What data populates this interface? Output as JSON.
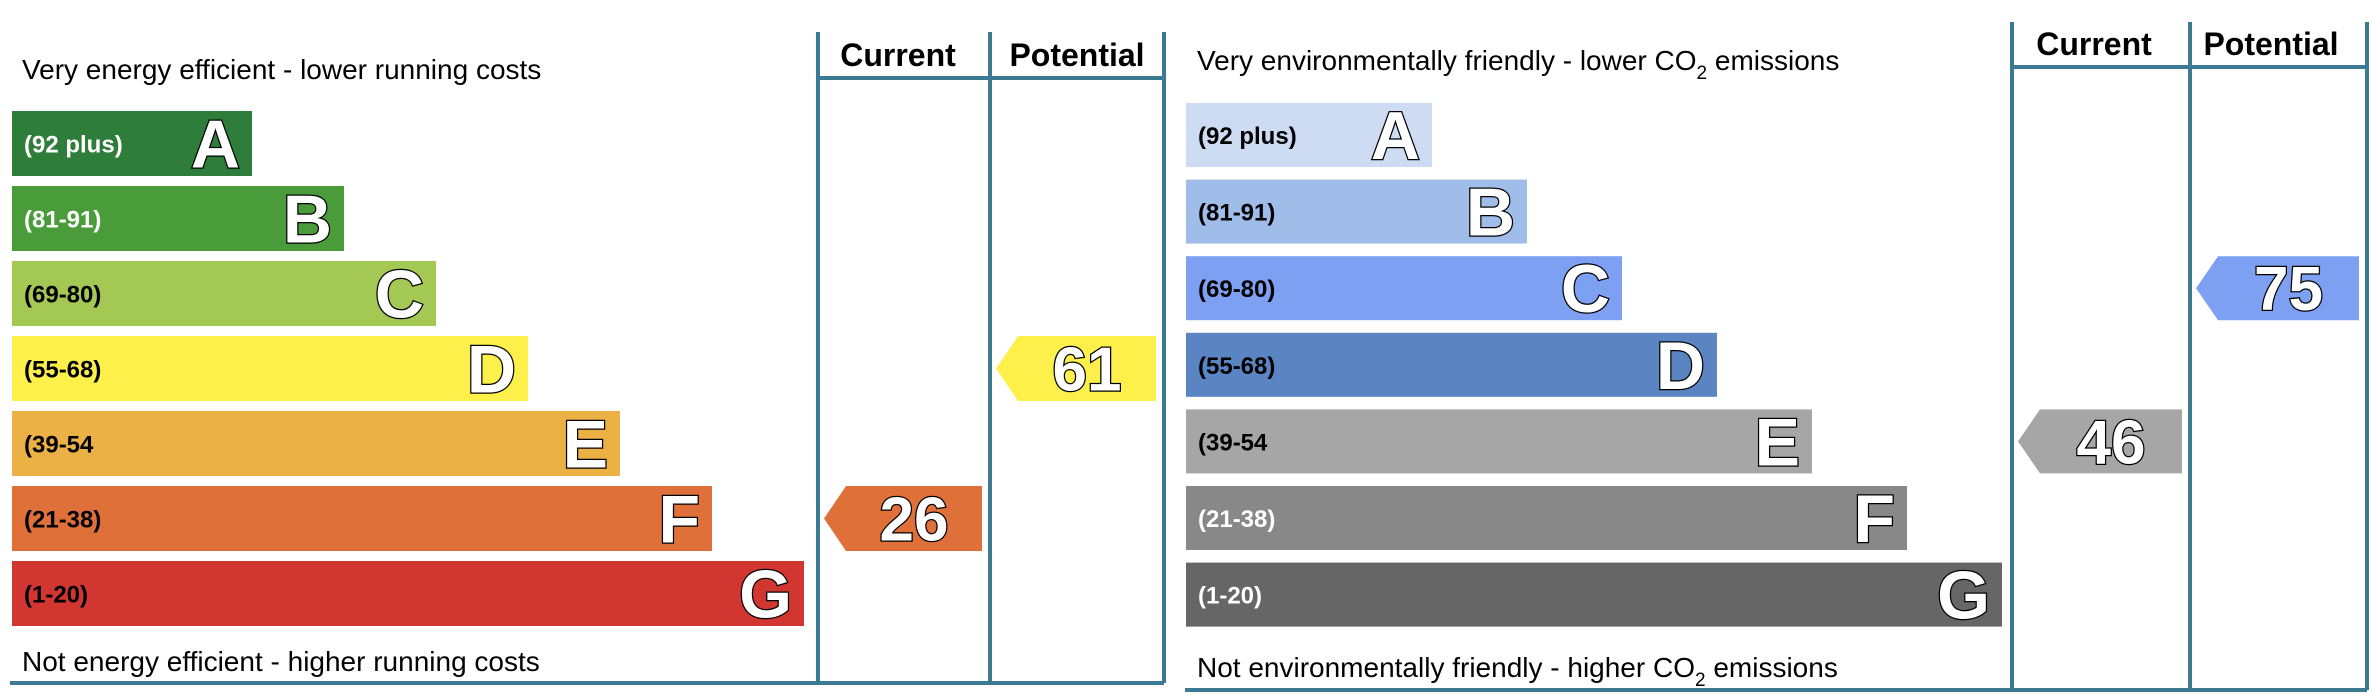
{
  "chart_data": [
    {
      "type": "bar",
      "headers": {
        "current": "Current",
        "potential": "Potential"
      },
      "top_caption": "Very energy efficient - lower running costs",
      "bottom_caption": "Not energy efficient - higher running costs",
      "bands": [
        {
          "letter": "A",
          "range": "(92 plus)",
          "color": "#2e7d3a",
          "text_color": "#ffffff"
        },
        {
          "letter": "B",
          "range": "(81-91)",
          "color": "#4a9c3b",
          "text_color": "#ffffff"
        },
        {
          "letter": "C",
          "range": "(69-80)",
          "color": "#a4c854",
          "text_color": "#000000"
        },
        {
          "letter": "D",
          "range": "(55-68)",
          "color": "#fdf04b",
          "text_color": "#000000"
        },
        {
          "letter": "E",
          "range": "(39-54",
          "color": "#ecb145",
          "text_color": "#000000"
        },
        {
          "letter": "F",
          "range": "(21-38)",
          "color": "#e0703a",
          "text_color": "#000000"
        },
        {
          "letter": "G",
          "range": "(1-20)",
          "color": "#d13631",
          "text_color": "#000000"
        }
      ],
      "current": {
        "value": 26,
        "label": "26",
        "band": "F",
        "color": "#e0703a"
      },
      "potential": {
        "value": 61,
        "label": "61",
        "band": "D",
        "color": "#fdf04b"
      }
    },
    {
      "type": "bar",
      "headers": {
        "current": "Current",
        "potential": "Potential"
      },
      "top_caption": {
        "pre": "Very environmentally friendly - lower CO",
        "sub": "2",
        "post": " emissions"
      },
      "bottom_caption": {
        "pre": "Not environmentally friendly - higher CO",
        "sub": "2",
        "post": " emissions"
      },
      "bands": [
        {
          "letter": "A",
          "range": "(92 plus)",
          "color": "#cddcf3",
          "text_color": "#000000"
        },
        {
          "letter": "B",
          "range": "(81-91)",
          "color": "#a0bdea",
          "text_color": "#000000"
        },
        {
          "letter": "C",
          "range": "(69-80)",
          "color": "#7da0f2",
          "text_color": "#000000"
        },
        {
          "letter": "D",
          "range": "(55-68)",
          "color": "#5a84c2",
          "text_color": "#000000"
        },
        {
          "letter": "E",
          "range": "(39-54",
          "color": "#a6a6a6",
          "text_color": "#000000"
        },
        {
          "letter": "F",
          "range": "(21-38)",
          "color": "#888888",
          "text_color": "#ffffff"
        },
        {
          "letter": "G",
          "range": "(1-20)",
          "color": "#666666",
          "text_color": "#ffffff"
        }
      ],
      "current": {
        "value": 46,
        "label": "46",
        "band": "E",
        "color": "#a6a6a6"
      },
      "potential": {
        "value": 75,
        "label": "75",
        "band": "C",
        "color": "#7da0f2"
      }
    }
  ],
  "colors": {
    "frame": "#3a7a92"
  }
}
